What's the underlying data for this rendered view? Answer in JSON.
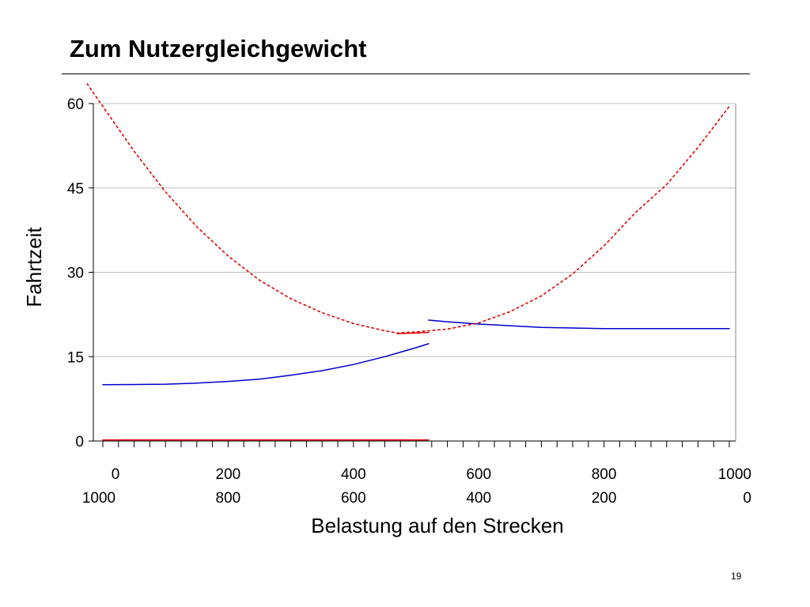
{
  "slide": {
    "title": "Zum Nutzergleichgewicht",
    "page_number": "19"
  },
  "chart_data": {
    "type": "line",
    "xlabel": "Belastung auf den Strecken",
    "ylabel": "Fahrtzeit",
    "xlim": [
      0,
      1000
    ],
    "ylim": [
      0,
      60
    ],
    "y_ticks": [
      "0",
      "15",
      "30",
      "45",
      "60"
    ],
    "x_ticks_top": [
      "0",
      "200",
      "400",
      "600",
      "800",
      "1000"
    ],
    "x_ticks_bottom": [
      "1000",
      "800",
      "600",
      "400",
      "200",
      "0"
    ],
    "grid": true,
    "legend": "none",
    "colors": {
      "blue": "#0000cc",
      "red": "#dd0000"
    },
    "series": [
      {
        "color": "#0000cc",
        "style": "solid",
        "x": [
          0,
          50,
          100,
          150,
          200,
          250,
          300,
          350,
          400,
          450,
          500,
          520
        ],
        "y": [
          10.0,
          10.05,
          10.1,
          10.3,
          10.6,
          11.0,
          11.7,
          12.5,
          13.6,
          15.0,
          16.6,
          17.3
        ]
      },
      {
        "color": "#0000cc",
        "style": "solid",
        "x": [
          520,
          550,
          600,
          650,
          700,
          750,
          800,
          850,
          900,
          950,
          1000
        ],
        "y": [
          21.5,
          21.2,
          20.8,
          20.5,
          20.2,
          20.1,
          20.0,
          20.0,
          20.0,
          20.0,
          20.0
        ]
      },
      {
        "color": "#dd0000",
        "style": "dotted",
        "x": [
          -25,
          0,
          50,
          100,
          150,
          200,
          250,
          300,
          350,
          400,
          450,
          470,
          500,
          550,
          600,
          650,
          700,
          750,
          800,
          850,
          900,
          950,
          1000
        ],
        "y": [
          63.5,
          59.5,
          51.5,
          44.3,
          38.1,
          32.9,
          28.6,
          25.3,
          22.8,
          20.9,
          19.6,
          19.2,
          19.4,
          19.9,
          21.0,
          23.0,
          25.8,
          29.7,
          34.7,
          40.6,
          45.6,
          52.2,
          59.5
        ]
      },
      {
        "color": "#dd0000",
        "style": "solid",
        "x": [
          470,
          500,
          520
        ],
        "y": [
          19.1,
          19.2,
          19.3
        ]
      },
      {
        "color": "#dd0000",
        "style": "solid",
        "x": [
          0,
          520
        ],
        "y": [
          0.2,
          0.2
        ]
      }
    ]
  }
}
